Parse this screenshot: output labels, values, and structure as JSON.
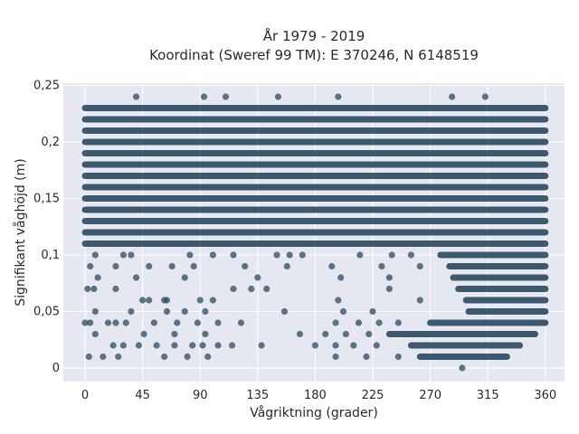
{
  "chart_data": {
    "type": "scatter",
    "title": "År 1979 - 2019",
    "subtitle": "Koordinat (Sweref 99 TM): E 370246, N 6148519",
    "xlabel": "Vågriktning (grader)",
    "ylabel": "Signifikant våghöjd (m)",
    "xlim": [
      -17,
      375
    ],
    "ylim": [
      -0.012,
      0.252
    ],
    "xticks": [
      0,
      45,
      90,
      135,
      180,
      225,
      270,
      315,
      360
    ],
    "xtick_labels": [
      "0",
      "45",
      "90",
      "135",
      "180",
      "225",
      "270",
      "315",
      "360"
    ],
    "yticks": [
      0,
      0.05,
      0.1,
      0.15,
      0.2,
      0.25
    ],
    "ytick_labels": [
      "0",
      "0,05",
      "0,1",
      "0,15",
      "0,2",
      "0,25"
    ],
    "grid": true,
    "marker_color": "#2c4a60",
    "plot_background": "#e5e8f0",
    "dense_bands": [
      {
        "y": 0.23,
        "x_ranges": [
          [
            0,
            360
          ]
        ]
      },
      {
        "y": 0.22,
        "x_ranges": [
          [
            0,
            360
          ]
        ]
      },
      {
        "y": 0.21,
        "x_ranges": [
          [
            0,
            360
          ]
        ]
      },
      {
        "y": 0.2,
        "x_ranges": [
          [
            0,
            360
          ]
        ]
      },
      {
        "y": 0.19,
        "x_ranges": [
          [
            0,
            360
          ]
        ]
      },
      {
        "y": 0.18,
        "x_ranges": [
          [
            0,
            360
          ]
        ]
      },
      {
        "y": 0.17,
        "x_ranges": [
          [
            0,
            360
          ]
        ]
      },
      {
        "y": 0.16,
        "x_ranges": [
          [
            0,
            360
          ]
        ]
      },
      {
        "y": 0.15,
        "x_ranges": [
          [
            0,
            360
          ]
        ]
      },
      {
        "y": 0.14,
        "x_ranges": [
          [
            0,
            360
          ]
        ]
      },
      {
        "y": 0.13,
        "x_ranges": [
          [
            0,
            360
          ]
        ]
      },
      {
        "y": 0.12,
        "x_ranges": [
          [
            0,
            360
          ]
        ]
      },
      {
        "y": 0.11,
        "x_ranges": [
          [
            0,
            360
          ]
        ]
      },
      {
        "y": 0.1,
        "x_ranges": [
          [
            278,
            360
          ]
        ]
      },
      {
        "y": 0.09,
        "x_ranges": [
          [
            285,
            360
          ]
        ]
      },
      {
        "y": 0.08,
        "x_ranges": [
          [
            288,
            360
          ]
        ]
      },
      {
        "y": 0.07,
        "x_ranges": [
          [
            292,
            360
          ]
        ]
      },
      {
        "y": 0.06,
        "x_ranges": [
          [
            298,
            360
          ]
        ]
      },
      {
        "y": 0.05,
        "x_ranges": [
          [
            300,
            360
          ]
        ]
      },
      {
        "y": 0.04,
        "x_ranges": [
          [
            270,
            360
          ]
        ]
      },
      {
        "y": 0.03,
        "x_ranges": [
          [
            238,
            352
          ]
        ]
      },
      {
        "y": 0.02,
        "x_ranges": [
          [
            255,
            340
          ]
        ]
      },
      {
        "y": 0.01,
        "x_ranges": [
          [
            262,
            330
          ]
        ]
      }
    ],
    "scatter_points": [
      {
        "x": 40,
        "y": 0.24
      },
      {
        "x": 93,
        "y": 0.24
      },
      {
        "x": 110,
        "y": 0.24
      },
      {
        "x": 151,
        "y": 0.24
      },
      {
        "x": 198,
        "y": 0.24
      },
      {
        "x": 287,
        "y": 0.24
      },
      {
        "x": 313,
        "y": 0.24
      },
      {
        "x": 8,
        "y": 0.1
      },
      {
        "x": 30,
        "y": 0.1
      },
      {
        "x": 36,
        "y": 0.1
      },
      {
        "x": 82,
        "y": 0.1
      },
      {
        "x": 100,
        "y": 0.1
      },
      {
        "x": 116,
        "y": 0.1
      },
      {
        "x": 150,
        "y": 0.1
      },
      {
        "x": 160,
        "y": 0.1
      },
      {
        "x": 170,
        "y": 0.1
      },
      {
        "x": 215,
        "y": 0.1
      },
      {
        "x": 240,
        "y": 0.1
      },
      {
        "x": 255,
        "y": 0.1
      },
      {
        "x": 4,
        "y": 0.09
      },
      {
        "x": 24,
        "y": 0.09
      },
      {
        "x": 50,
        "y": 0.09
      },
      {
        "x": 68,
        "y": 0.09
      },
      {
        "x": 85,
        "y": 0.09
      },
      {
        "x": 125,
        "y": 0.09
      },
      {
        "x": 158,
        "y": 0.09
      },
      {
        "x": 193,
        "y": 0.09
      },
      {
        "x": 232,
        "y": 0.09
      },
      {
        "x": 262,
        "y": 0.09
      },
      {
        "x": 10,
        "y": 0.08
      },
      {
        "x": 40,
        "y": 0.08
      },
      {
        "x": 78,
        "y": 0.08
      },
      {
        "x": 135,
        "y": 0.08
      },
      {
        "x": 200,
        "y": 0.08
      },
      {
        "x": 238,
        "y": 0.08
      },
      {
        "x": 2,
        "y": 0.07
      },
      {
        "x": 7,
        "y": 0.07
      },
      {
        "x": 24,
        "y": 0.07
      },
      {
        "x": 116,
        "y": 0.07
      },
      {
        "x": 130,
        "y": 0.07
      },
      {
        "x": 142,
        "y": 0.07
      },
      {
        "x": 238,
        "y": 0.07
      },
      {
        "x": 45,
        "y": 0.06
      },
      {
        "x": 50,
        "y": 0.06
      },
      {
        "x": 62,
        "y": 0.06
      },
      {
        "x": 64,
        "y": 0.06
      },
      {
        "x": 90,
        "y": 0.06
      },
      {
        "x": 100,
        "y": 0.06
      },
      {
        "x": 198,
        "y": 0.06
      },
      {
        "x": 262,
        "y": 0.06
      },
      {
        "x": 8,
        "y": 0.05
      },
      {
        "x": 36,
        "y": 0.05
      },
      {
        "x": 64,
        "y": 0.05
      },
      {
        "x": 78,
        "y": 0.05
      },
      {
        "x": 94,
        "y": 0.05
      },
      {
        "x": 156,
        "y": 0.05
      },
      {
        "x": 202,
        "y": 0.05
      },
      {
        "x": 225,
        "y": 0.05
      },
      {
        "x": 0,
        "y": 0.04
      },
      {
        "x": 4,
        "y": 0.04
      },
      {
        "x": 18,
        "y": 0.04
      },
      {
        "x": 24,
        "y": 0.04
      },
      {
        "x": 32,
        "y": 0.04
      },
      {
        "x": 54,
        "y": 0.04
      },
      {
        "x": 72,
        "y": 0.04
      },
      {
        "x": 88,
        "y": 0.04
      },
      {
        "x": 104,
        "y": 0.04
      },
      {
        "x": 122,
        "y": 0.04
      },
      {
        "x": 196,
        "y": 0.04
      },
      {
        "x": 214,
        "y": 0.04
      },
      {
        "x": 230,
        "y": 0.04
      },
      {
        "x": 245,
        "y": 0.04
      },
      {
        "x": 8,
        "y": 0.03
      },
      {
        "x": 46,
        "y": 0.03
      },
      {
        "x": 70,
        "y": 0.03
      },
      {
        "x": 94,
        "y": 0.03
      },
      {
        "x": 168,
        "y": 0.03
      },
      {
        "x": 188,
        "y": 0.03
      },
      {
        "x": 204,
        "y": 0.03
      },
      {
        "x": 222,
        "y": 0.03
      },
      {
        "x": 22,
        "y": 0.02
      },
      {
        "x": 30,
        "y": 0.02
      },
      {
        "x": 42,
        "y": 0.02
      },
      {
        "x": 56,
        "y": 0.02
      },
      {
        "x": 70,
        "y": 0.02
      },
      {
        "x": 84,
        "y": 0.02
      },
      {
        "x": 92,
        "y": 0.02
      },
      {
        "x": 104,
        "y": 0.02
      },
      {
        "x": 115,
        "y": 0.02
      },
      {
        "x": 138,
        "y": 0.02
      },
      {
        "x": 180,
        "y": 0.02
      },
      {
        "x": 196,
        "y": 0.02
      },
      {
        "x": 210,
        "y": 0.02
      },
      {
        "x": 228,
        "y": 0.02
      },
      {
        "x": 3,
        "y": 0.01
      },
      {
        "x": 14,
        "y": 0.01
      },
      {
        "x": 26,
        "y": 0.01
      },
      {
        "x": 62,
        "y": 0.01
      },
      {
        "x": 80,
        "y": 0.01
      },
      {
        "x": 96,
        "y": 0.01
      },
      {
        "x": 196,
        "y": 0.01
      },
      {
        "x": 220,
        "y": 0.01
      },
      {
        "x": 245,
        "y": 0.01
      },
      {
        "x": 295,
        "y": 0.0
      }
    ]
  }
}
